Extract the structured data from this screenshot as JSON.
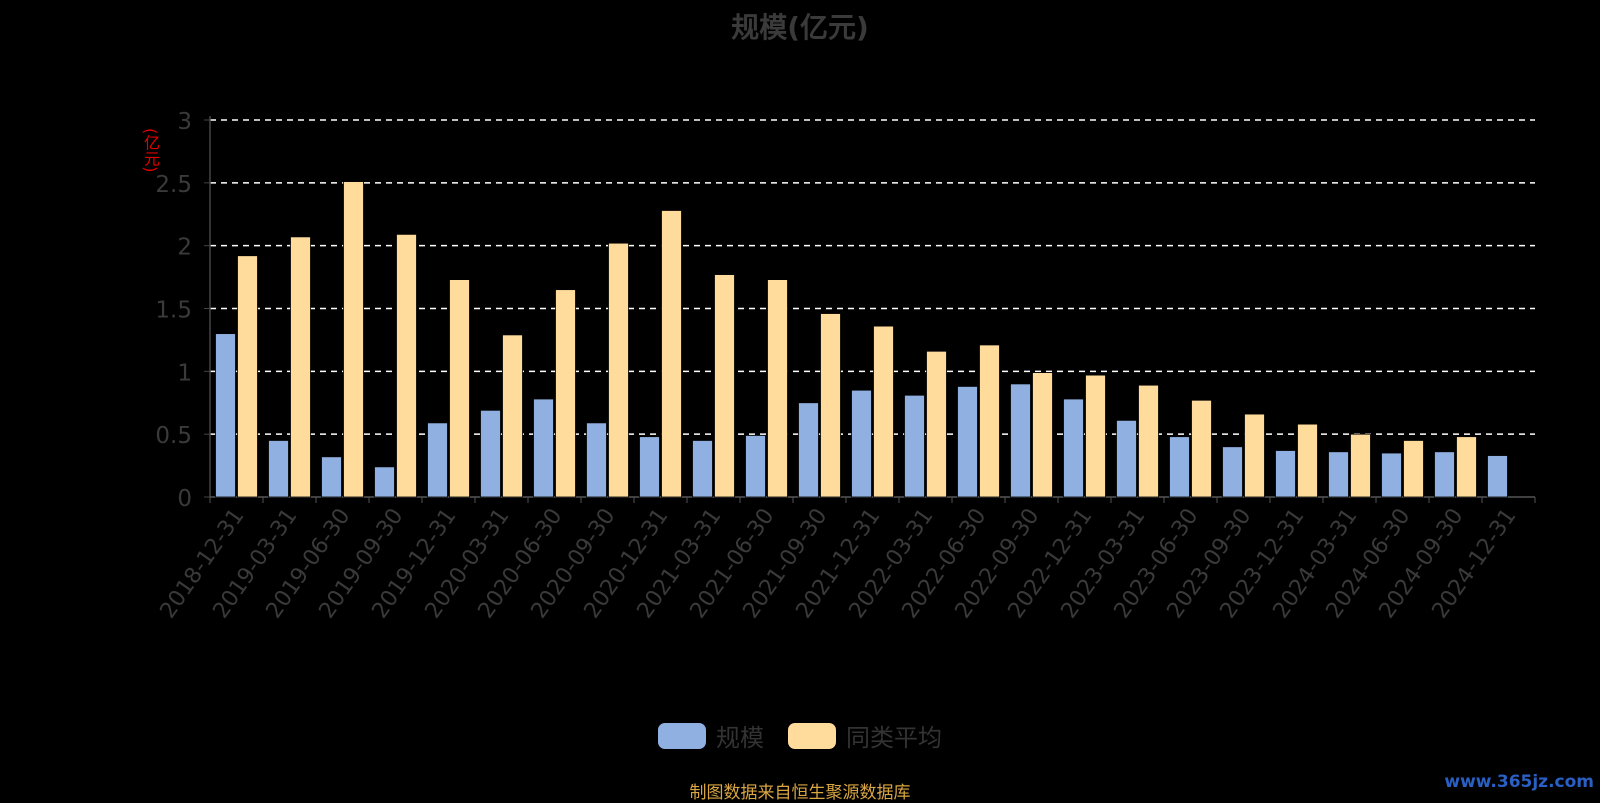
{
  "title": "规模(亿元)",
  "source": "制图数据来自恒生聚源数据库",
  "watermark": "www.365jz.com",
  "colors": {
    "background": "#000000",
    "series_scale": "#8fb0e0",
    "series_avg": "#ffdb9c",
    "axis_text": "#3a3a3a",
    "grid": "#ffffff",
    "ylabel": "#e00000"
  },
  "chart_data": {
    "type": "bar",
    "title": "规模(亿元)",
    "ylabel": "(亿元)",
    "ylim": [
      0,
      3
    ],
    "yticks": [
      "0",
      "0.5",
      "1",
      "1.5",
      "2",
      "2.5",
      "3"
    ],
    "grid": true,
    "legend_position": "bottom-center",
    "categories": [
      "2018-12-31",
      "2019-03-31",
      "2019-06-30",
      "2019-09-30",
      "2019-12-31",
      "2020-03-31",
      "2020-06-30",
      "2020-09-30",
      "2020-12-31",
      "2021-03-31",
      "2021-06-30",
      "2021-09-30",
      "2021-12-31",
      "2022-03-31",
      "2022-06-30",
      "2022-09-30",
      "2022-12-31",
      "2023-03-31",
      "2023-06-30",
      "2023-09-30",
      "2023-12-31",
      "2024-03-31",
      "2024-06-30",
      "2024-09-30",
      "2024-12-31"
    ],
    "series": [
      {
        "name": "规模",
        "color": "#8fb0e0",
        "values": [
          1.3,
          0.45,
          0.32,
          0.24,
          0.59,
          0.69,
          0.78,
          0.59,
          0.48,
          0.45,
          0.49,
          0.75,
          0.85,
          0.81,
          0.88,
          0.9,
          0.78,
          0.61,
          0.48,
          0.4,
          0.37,
          0.36,
          0.35,
          0.36,
          0.33
        ]
      },
      {
        "name": "同类平均",
        "color": "#ffdb9c",
        "values": [
          1.92,
          2.07,
          2.51,
          2.09,
          1.73,
          1.29,
          1.65,
          2.02,
          2.28,
          1.77,
          1.73,
          1.46,
          1.36,
          1.16,
          1.21,
          0.99,
          0.97,
          0.89,
          0.77,
          0.66,
          0.58,
          0.5,
          0.45,
          0.48,
          null
        ]
      }
    ]
  }
}
